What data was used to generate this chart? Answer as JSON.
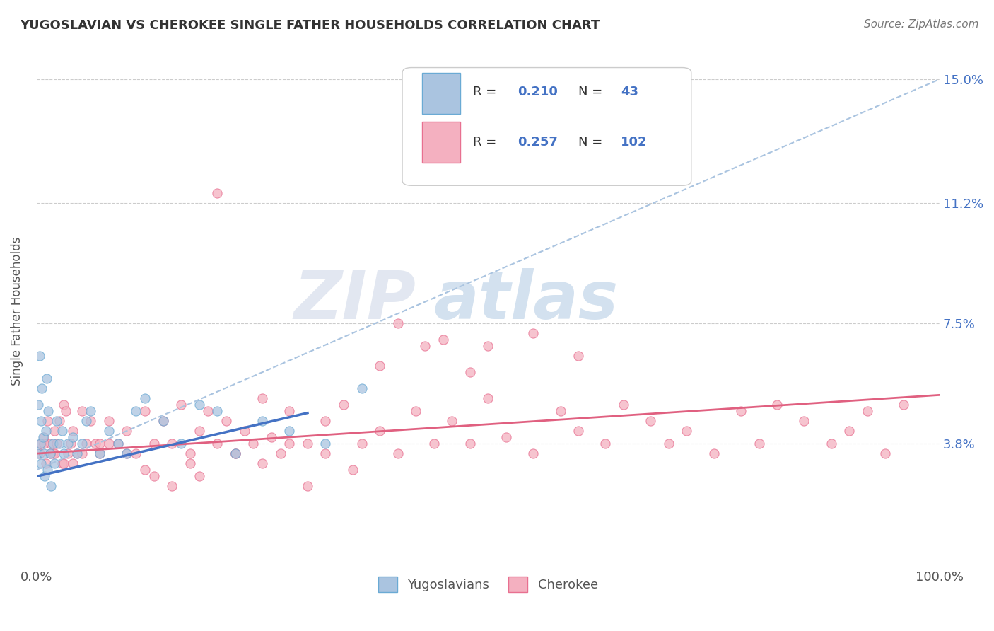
{
  "title": "YUGOSLAVIAN VS CHEROKEE SINGLE FATHER HOUSEHOLDS CORRELATION CHART",
  "source": "Source: ZipAtlas.com",
  "ylabel": "Single Father Households",
  "x_min": 0.0,
  "x_max": 100.0,
  "y_min": 0.0,
  "y_max": 15.0,
  "yticks": [
    0.0,
    3.8,
    7.5,
    11.2,
    15.0
  ],
  "ytick_labels": [
    "",
    "3.8%",
    "7.5%",
    "11.2%",
    "15.0%"
  ],
  "xtick_labels": [
    "0.0%",
    "100.0%"
  ],
  "series": [
    {
      "name": "Yugoslavians",
      "R": 0.21,
      "N": 43,
      "color": "#aac4e0",
      "marker_color": "#6aaad4",
      "trend_color": "#4472c4",
      "trend_style": "-",
      "trend_intercept": 2.8,
      "trend_slope": 0.065
    },
    {
      "name": "Cherokee",
      "R": 0.257,
      "N": 102,
      "color": "#f4b0c0",
      "marker_color": "#e87090",
      "trend_color": "#e06080",
      "trend_style": "-",
      "trend_intercept": 3.5,
      "trend_slope": 0.018
    }
  ],
  "dashed_line": {
    "color": "#aac4e0",
    "intercept": 3.0,
    "slope": 0.12
  },
  "background_color": "#ffffff",
  "grid_color": "#cccccc",
  "title_color": "#333333",
  "watermark_color": "#c8d8ec",
  "yug_x": [
    0.1,
    0.2,
    0.3,
    0.4,
    0.5,
    0.5,
    0.6,
    0.7,
    0.8,
    0.9,
    1.0,
    1.1,
    1.2,
    1.3,
    1.5,
    1.6,
    1.8,
    2.0,
    2.2,
    2.5,
    2.8,
    3.0,
    3.5,
    4.0,
    4.5,
    5.0,
    5.5,
    6.0,
    7.0,
    8.0,
    9.0,
    10.0,
    11.0,
    12.0,
    14.0,
    16.0,
    18.0,
    20.0,
    22.0,
    25.0,
    28.0,
    32.0,
    36.0
  ],
  "yug_y": [
    3.5,
    5.0,
    6.5,
    3.8,
    4.5,
    3.2,
    5.5,
    4.0,
    3.5,
    2.8,
    4.2,
    5.8,
    3.0,
    4.8,
    3.5,
    2.5,
    3.8,
    3.2,
    4.5,
    3.8,
    4.2,
    3.5,
    3.8,
    4.0,
    3.5,
    3.8,
    4.5,
    4.8,
    3.5,
    4.2,
    3.8,
    3.5,
    4.8,
    5.2,
    4.5,
    3.8,
    5.0,
    4.8,
    3.5,
    4.5,
    4.2,
    3.8,
    5.5
  ],
  "cher_x": [
    0.3,
    0.5,
    0.8,
    1.0,
    1.2,
    1.5,
    1.8,
    2.0,
    2.2,
    2.5,
    2.8,
    3.0,
    3.2,
    3.5,
    3.8,
    4.0,
    4.5,
    5.0,
    5.5,
    6.0,
    6.5,
    7.0,
    8.0,
    9.0,
    10.0,
    11.0,
    12.0,
    13.0,
    14.0,
    15.0,
    16.0,
    17.0,
    18.0,
    19.0,
    20.0,
    21.0,
    22.0,
    23.0,
    24.0,
    25.0,
    26.0,
    27.0,
    28.0,
    30.0,
    32.0,
    34.0,
    36.0,
    38.0,
    40.0,
    42.0,
    44.0,
    46.0,
    48.0,
    50.0,
    52.0,
    55.0,
    58.0,
    60.0,
    63.0,
    65.0,
    68.0,
    70.0,
    72.0,
    75.0,
    78.0,
    80.0,
    82.0,
    85.0,
    88.0,
    90.0,
    92.0,
    94.0,
    96.0,
    40.0,
    45.0,
    50.0,
    55.0,
    60.0,
    38.0,
    43.0,
    48.0,
    25.0,
    32.0,
    18.0,
    15.0,
    12.0,
    8.0,
    5.0,
    3.0,
    2.0,
    35.0,
    28.0,
    22.0,
    17.0,
    13.0,
    10.0,
    7.0,
    4.0,
    1.5,
    0.8,
    20.0,
    30.0
  ],
  "cher_y": [
    3.5,
    3.8,
    4.0,
    3.2,
    4.5,
    3.8,
    3.5,
    4.2,
    3.8,
    4.5,
    3.2,
    5.0,
    4.8,
    3.5,
    3.8,
    4.2,
    3.5,
    4.8,
    3.8,
    4.5,
    3.8,
    3.5,
    4.5,
    3.8,
    4.2,
    3.5,
    4.8,
    3.8,
    4.5,
    3.8,
    5.0,
    3.5,
    4.2,
    4.8,
    3.8,
    4.5,
    3.5,
    4.2,
    3.8,
    5.2,
    4.0,
    3.5,
    4.8,
    3.8,
    4.5,
    5.0,
    3.8,
    4.2,
    3.5,
    4.8,
    3.8,
    4.5,
    3.8,
    5.2,
    4.0,
    3.5,
    4.8,
    4.2,
    3.8,
    5.0,
    4.5,
    3.8,
    4.2,
    3.5,
    4.8,
    3.8,
    5.0,
    4.5,
    3.8,
    4.2,
    4.8,
    3.5,
    5.0,
    7.5,
    7.0,
    6.8,
    7.2,
    6.5,
    6.2,
    6.8,
    6.0,
    3.2,
    3.5,
    2.8,
    2.5,
    3.0,
    3.8,
    3.5,
    3.2,
    3.5,
    3.0,
    3.8,
    3.5,
    3.2,
    2.8,
    3.5,
    3.8,
    3.2,
    3.5,
    3.8,
    11.5,
    2.5
  ]
}
